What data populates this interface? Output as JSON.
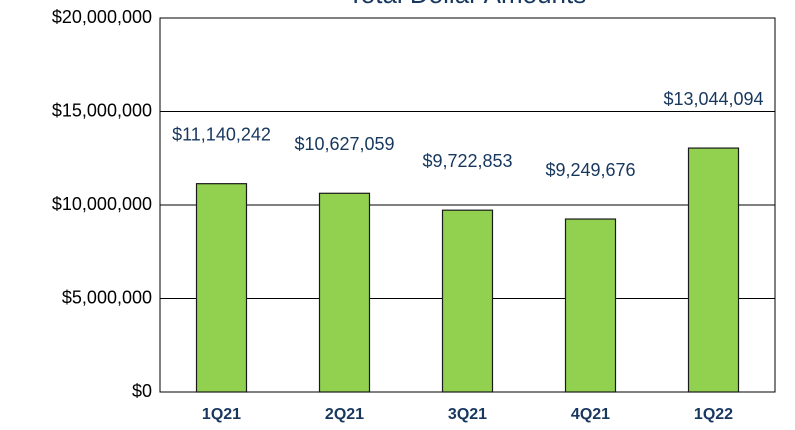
{
  "chart_data": {
    "type": "bar",
    "title": "Total Dollar Amounts",
    "categories": [
      "1Q21",
      "2Q21",
      "3Q21",
      "4Q21",
      "1Q22"
    ],
    "values": [
      11140242,
      10627059,
      9722853,
      9249676,
      13044094
    ],
    "value_labels": [
      "$11,140,242",
      "$10,627,059",
      "$9,722,853",
      "$9,249,676",
      "$13,044,094"
    ],
    "color": "#92d050",
    "ylim": [
      0,
      20000000
    ],
    "yticks": [
      {
        "value": 0,
        "label": "$0"
      },
      {
        "value": 5000000,
        "label": "$5,000,000"
      },
      {
        "value": 10000000,
        "label": "$10,000,000"
      },
      {
        "value": 15000000,
        "label": "$15,000,000"
      },
      {
        "value": 20000000,
        "label": "$20,000,000"
      }
    ],
    "grid": true
  }
}
